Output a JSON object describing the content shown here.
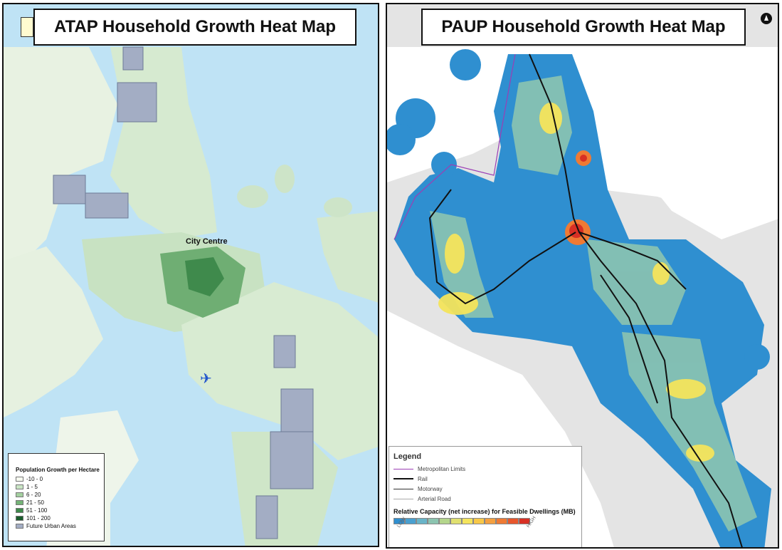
{
  "left_panel": {
    "title": "ATAP Household Growth Heat Map",
    "city_label": "City Centre",
    "legend": {
      "title": "Population Growth per Hectare",
      "items": [
        {
          "label": "-10 - 0",
          "color": "#f7fbf0"
        },
        {
          "label": "1 - 5",
          "color": "#c9e4c4"
        },
        {
          "label": "6 - 20",
          "color": "#a4d0a0"
        },
        {
          "label": "21 - 50",
          "color": "#74b377"
        },
        {
          "label": "51 - 100",
          "color": "#3f8a4c"
        },
        {
          "label": "101 - 200",
          "color": "#1a5c2c"
        },
        {
          "label": "Future Urban Areas",
          "color": "#a3adc4"
        }
      ]
    }
  },
  "right_panel": {
    "title": "PAUP Household Growth Heat Map",
    "legend": {
      "title": "Legend",
      "items": [
        {
          "label": "Metropolitan Limits",
          "color": "#9b3fb5"
        },
        {
          "label": "Rail",
          "color": "#111111"
        },
        {
          "label": "Motorway",
          "color": "#333333"
        },
        {
          "label": "Arterial Road",
          "color": "#aaaaaa"
        }
      ],
      "capacity_label": "Relative Capacity (net increase) for Feasible Dwellings (MB)",
      "ramp_colors": [
        "#2f8fd0",
        "#4aa0d0",
        "#69b4c8",
        "#8cc4b0",
        "#b4d68c",
        "#e0e070",
        "#f4e45c",
        "#f8c848",
        "#f4a040",
        "#ef7a34",
        "#e8562c",
        "#d83024"
      ],
      "ramp_low": "LOW",
      "ramp_high": "HIGH"
    }
  }
}
